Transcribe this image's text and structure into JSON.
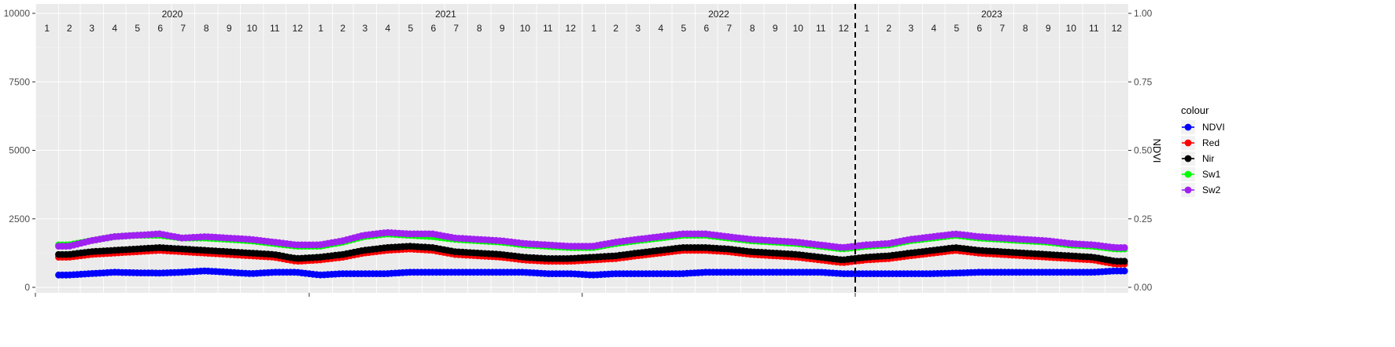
{
  "chart_data": {
    "type": "line",
    "title": "",
    "xlabel": "",
    "ylabel": "",
    "y2label": "NDVI",
    "ylim": [
      0,
      10000
    ],
    "y2lim": [
      0,
      1
    ],
    "yticks": [
      "0",
      "2500",
      "5000",
      "7500",
      "10000"
    ],
    "y2ticks": [
      "0.00",
      "0.25",
      "0.50",
      "0.75",
      "1.00"
    ],
    "grid": true,
    "panel_background": "#ebebeb",
    "legend": {
      "title": "colour",
      "position": "right"
    },
    "years": [
      "2020",
      "2021",
      "2022",
      "2023"
    ],
    "months": [
      "1",
      "2",
      "3",
      "4",
      "5",
      "6",
      "7",
      "8",
      "9",
      "10",
      "11",
      "12"
    ],
    "vline": {
      "date": "2023-01-01",
      "style": "dashed",
      "color": "#000000"
    },
    "x_start": "2020-01-01",
    "x_end": "2024-01-01",
    "series_start": "2020-02-01",
    "series_step_days": 5,
    "monthly_dates": [
      "2020-02",
      "2020-03",
      "2020-04",
      "2020-05",
      "2020-06",
      "2020-07",
      "2020-08",
      "2020-09",
      "2020-10",
      "2020-11",
      "2020-12",
      "2021-01",
      "2021-02",
      "2021-03",
      "2021-04",
      "2021-05",
      "2021-06",
      "2021-07",
      "2021-08",
      "2021-09",
      "2021-10",
      "2021-11",
      "2021-12",
      "2022-01",
      "2022-02",
      "2022-03",
      "2022-04",
      "2022-05",
      "2022-06",
      "2022-07",
      "2022-08",
      "2022-09",
      "2022-10",
      "2022-11",
      "2022-12",
      "2023-01",
      "2023-02",
      "2023-03",
      "2023-04",
      "2023-05",
      "2023-06",
      "2023-07",
      "2023-08",
      "2023-09",
      "2023-10",
      "2023-11",
      "2023-12"
    ],
    "series": [
      {
        "name": "NDVI",
        "color": "#0000ff",
        "axis": "secondary",
        "monthly": [
          0.045,
          0.05,
          0.055,
          0.053,
          0.052,
          0.055,
          0.06,
          0.055,
          0.05,
          0.055,
          0.055,
          0.045,
          0.05,
          0.05,
          0.05,
          0.055,
          0.055,
          0.055,
          0.055,
          0.055,
          0.055,
          0.05,
          0.05,
          0.045,
          0.05,
          0.05,
          0.05,
          0.05,
          0.055,
          0.055,
          0.055,
          0.055,
          0.055,
          0.055,
          0.05,
          0.05,
          0.05,
          0.05,
          0.05,
          0.052,
          0.055,
          0.055,
          0.055,
          0.055,
          0.055,
          0.055,
          0.06
        ]
      },
      {
        "name": "Red",
        "color": "#ff0000",
        "axis": "primary",
        "monthly": [
          1100,
          1200,
          1250,
          1300,
          1350,
          1300,
          1250,
          1200,
          1150,
          1100,
          950,
          1000,
          1100,
          1250,
          1350,
          1400,
          1350,
          1200,
          1150,
          1100,
          1000,
          950,
          950,
          1000,
          1050,
          1150,
          1250,
          1350,
          1350,
          1300,
          1200,
          1150,
          1100,
          1000,
          900,
          1000,
          1050,
          1150,
          1250,
          1350,
          1250,
          1200,
          1150,
          1100,
          1050,
          1000,
          850
        ]
      },
      {
        "name": "Nir",
        "color": "#000000",
        "axis": "primary",
        "monthly": [
          1200,
          1300,
          1350,
          1400,
          1450,
          1400,
          1350,
          1300,
          1250,
          1200,
          1050,
          1100,
          1200,
          1350,
          1450,
          1500,
          1450,
          1300,
          1250,
          1200,
          1100,
          1050,
          1050,
          1100,
          1150,
          1250,
          1350,
          1450,
          1450,
          1400,
          1300,
          1250,
          1200,
          1100,
          1000,
          1100,
          1150,
          1250,
          1350,
          1450,
          1350,
          1300,
          1250,
          1200,
          1150,
          1100,
          950
        ]
      },
      {
        "name": "Sw1",
        "color": "#00ff00",
        "axis": "primary",
        "monthly": [
          1550,
          1700,
          1850,
          1900,
          1900,
          1800,
          1800,
          1750,
          1700,
          1600,
          1500,
          1500,
          1650,
          1850,
          1950,
          1900,
          1850,
          1750,
          1700,
          1650,
          1550,
          1500,
          1450,
          1450,
          1600,
          1700,
          1800,
          1900,
          1900,
          1800,
          1700,
          1650,
          1600,
          1500,
          1400,
          1500,
          1550,
          1700,
          1800,
          1900,
          1800,
          1750,
          1700,
          1650,
          1550,
          1500,
          1400
        ]
      },
      {
        "name": "Sw2",
        "color": "#a020f0",
        "axis": "primary",
        "monthly": [
          1500,
          1700,
          1850,
          1900,
          1950,
          1800,
          1850,
          1800,
          1750,
          1650,
          1550,
          1550,
          1700,
          1900,
          2000,
          1950,
          1950,
          1800,
          1750,
          1700,
          1600,
          1550,
          1500,
          1500,
          1650,
          1750,
          1850,
          1950,
          1950,
          1850,
          1750,
          1700,
          1650,
          1550,
          1450,
          1550,
          1600,
          1750,
          1850,
          1950,
          1850,
          1800,
          1750,
          1700,
          1600,
          1550,
          1450
        ]
      }
    ]
  }
}
